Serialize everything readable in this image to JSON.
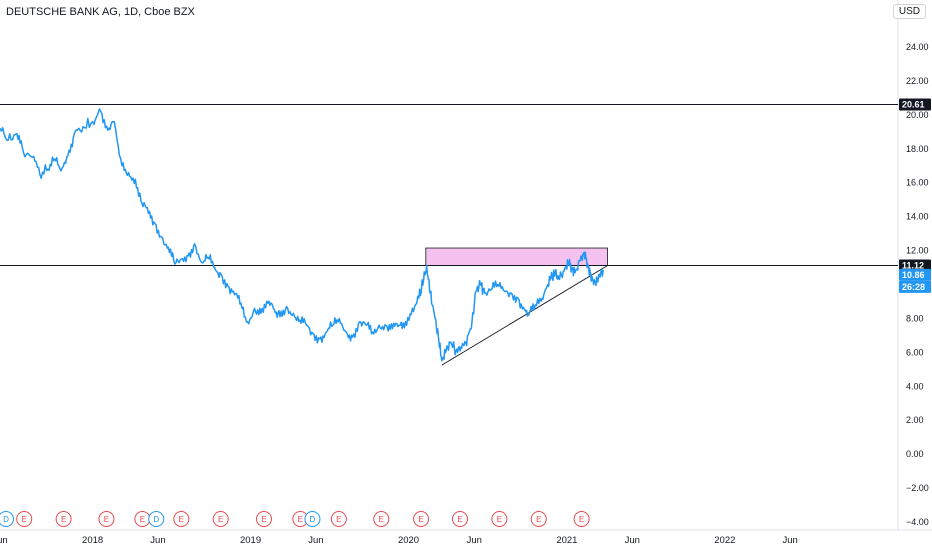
{
  "header": {
    "title": "DEUTSCHE BANK AG, 1D, Cboe BZX",
    "currency": "USD"
  },
  "colors": {
    "price_line": "#2196f3",
    "resistance_zone_fill": "#f5c2ef",
    "horizontal_line": "#131722",
    "trendline": "#131722",
    "dividend_event": "#2196f3",
    "earnings_event": "#e5484d",
    "last_price_tag": "#2196f3"
  },
  "chart_data": {
    "type": "line",
    "title": "DEUTSCHE BANK AG, 1D, Cboe BZX",
    "ylim": [
      -4.5,
      25.5
    ],
    "xlim": [
      "2017-06-01",
      "2022-09-01"
    ],
    "y_ticks": [
      "24.00",
      "22.00",
      "20.00",
      "18.00",
      "16.00",
      "14.00",
      "12.00",
      "10.00",
      "8.00",
      "6.00",
      "4.00",
      "2.00",
      "0.00",
      "−2.00",
      "−4.00"
    ],
    "x_ticks": [
      {
        "label": "Jun",
        "date": "2017-06-01"
      },
      {
        "label": "2018",
        "date": "2018-01-01"
      },
      {
        "label": "Jun",
        "date": "2018-06-01"
      },
      {
        "label": "2019",
        "date": "2019-01-01"
      },
      {
        "label": "Jun",
        "date": "2019-06-01"
      },
      {
        "label": "2020",
        "date": "2020-01-01"
      },
      {
        "label": "Jun",
        "date": "2020-06-01"
      },
      {
        "label": "2021",
        "date": "2021-01-01"
      },
      {
        "label": "Jun",
        "date": "2021-06-01"
      },
      {
        "label": "2022",
        "date": "2022-01-01"
      },
      {
        "label": "Jun",
        "date": "2022-06-01"
      }
    ],
    "series": [
      {
        "points": [
          [
            "2017-06-01",
            19.2
          ],
          [
            "2017-06-20",
            18.5
          ],
          [
            "2017-07-10",
            18.9
          ],
          [
            "2017-07-25",
            17.8
          ],
          [
            "2017-08-15",
            17.5
          ],
          [
            "2017-09-01",
            16.5
          ],
          [
            "2017-09-20",
            16.8
          ],
          [
            "2017-10-05",
            17.4
          ],
          [
            "2017-10-20",
            16.7
          ],
          [
            "2017-11-05",
            17.6
          ],
          [
            "2017-11-20",
            18.9
          ],
          [
            "2017-12-10",
            19.3
          ],
          [
            "2018-01-01",
            19.6
          ],
          [
            "2018-01-20",
            20.2
          ],
          [
            "2018-02-05",
            19.1
          ],
          [
            "2018-02-20",
            19.6
          ],
          [
            "2018-03-10",
            17.0
          ],
          [
            "2018-03-25",
            16.6
          ],
          [
            "2018-04-10",
            16.2
          ],
          [
            "2018-04-25",
            14.8
          ],
          [
            "2018-05-10",
            14.2
          ],
          [
            "2018-05-25",
            13.6
          ],
          [
            "2018-06-10",
            12.8
          ],
          [
            "2018-06-25",
            12.2
          ],
          [
            "2018-07-10",
            11.2
          ],
          [
            "2018-07-25",
            11.5
          ],
          [
            "2018-08-10",
            11.7
          ],
          [
            "2018-08-25",
            12.4
          ],
          [
            "2018-09-10",
            11.3
          ],
          [
            "2018-09-25",
            11.6
          ],
          [
            "2018-10-10",
            11.0
          ],
          [
            "2018-10-25",
            10.6
          ],
          [
            "2018-11-10",
            9.9
          ],
          [
            "2018-11-25",
            9.4
          ],
          [
            "2018-12-10",
            8.9
          ],
          [
            "2018-12-25",
            7.8
          ],
          [
            "2019-01-10",
            8.6
          ],
          [
            "2019-01-25",
            8.3
          ],
          [
            "2019-02-10",
            8.9
          ],
          [
            "2019-02-25",
            8.5
          ],
          [
            "2019-03-10",
            8.1
          ],
          [
            "2019-03-25",
            8.7
          ],
          [
            "2019-04-10",
            8.3
          ],
          [
            "2019-04-25",
            7.9
          ],
          [
            "2019-05-10",
            7.6
          ],
          [
            "2019-05-25",
            7.1
          ],
          [
            "2019-06-10",
            6.8
          ],
          [
            "2019-06-25",
            7.2
          ],
          [
            "2019-07-10",
            7.6
          ],
          [
            "2019-07-25",
            8.0
          ],
          [
            "2019-08-10",
            7.2
          ],
          [
            "2019-08-25",
            6.9
          ],
          [
            "2019-09-10",
            7.8
          ],
          [
            "2019-09-25",
            7.6
          ],
          [
            "2019-10-10",
            7.2
          ],
          [
            "2019-10-25",
            7.6
          ],
          [
            "2019-11-10",
            7.6
          ],
          [
            "2019-11-25",
            7.4
          ],
          [
            "2019-12-10",
            7.6
          ],
          [
            "2019-12-25",
            7.8
          ],
          [
            "2020-01-10",
            8.6
          ],
          [
            "2020-01-25",
            9.2
          ],
          [
            "2020-02-05",
            10.3
          ],
          [
            "2020-02-12",
            11.1
          ],
          [
            "2020-02-20",
            9.5
          ],
          [
            "2020-03-01",
            8.2
          ],
          [
            "2020-03-10",
            6.9
          ],
          [
            "2020-03-18",
            5.5
          ],
          [
            "2020-03-28",
            6.1
          ],
          [
            "2020-04-08",
            6.6
          ],
          [
            "2020-04-20",
            6.1
          ],
          [
            "2020-05-01",
            6.3
          ],
          [
            "2020-05-12",
            6.6
          ],
          [
            "2020-05-25",
            7.4
          ],
          [
            "2020-06-05",
            9.6
          ],
          [
            "2020-06-15",
            10.0
          ],
          [
            "2020-06-25",
            9.5
          ],
          [
            "2020-07-10",
            9.7
          ],
          [
            "2020-07-25",
            10.0
          ],
          [
            "2020-08-10",
            9.6
          ],
          [
            "2020-08-25",
            9.5
          ],
          [
            "2020-09-10",
            9.2
          ],
          [
            "2020-09-25",
            8.5
          ],
          [
            "2020-10-05",
            8.2
          ],
          [
            "2020-10-20",
            8.8
          ],
          [
            "2020-11-05",
            9.2
          ],
          [
            "2020-11-15",
            9.8
          ],
          [
            "2020-11-25",
            10.4
          ],
          [
            "2020-12-05",
            10.6
          ],
          [
            "2020-12-15",
            10.3
          ],
          [
            "2020-12-28",
            11.0
          ],
          [
            "2021-01-05",
            11.3
          ],
          [
            "2021-01-12",
            11.0
          ],
          [
            "2021-01-20",
            10.7
          ],
          [
            "2021-02-01",
            11.4
          ],
          [
            "2021-02-10",
            11.9
          ],
          [
            "2021-02-18",
            11.2
          ],
          [
            "2021-02-25",
            10.6
          ],
          [
            "2021-03-04",
            10.0
          ],
          [
            "2021-03-12",
            10.3
          ],
          [
            "2021-03-20",
            10.6
          ],
          [
            "2021-03-26",
            10.86
          ]
        ]
      }
    ],
    "horizontal_lines": [
      20.61,
      11.12
    ],
    "resistance_zone": {
      "x_start": "2020-02-10",
      "x_end": "2021-04-05",
      "y_low": 11.12,
      "y_high": 12.15
    },
    "trendline": {
      "start": [
        "2020-03-18",
        5.25
      ],
      "end": [
        "2021-04-05",
        11.12
      ]
    },
    "price_tags": [
      {
        "label": "20.61",
        "value": 20.61,
        "style": "dark"
      },
      {
        "label": "11.12",
        "value": 11.12,
        "style": "dark"
      },
      {
        "label": "10.86",
        "value": 10.86,
        "style": "blue"
      },
      {
        "label": "26:28",
        "value": 10.86,
        "style": "blue-lower"
      }
    ],
    "events": [
      {
        "type": "D",
        "date": "2017-06-01"
      },
      {
        "type": "E",
        "date": "2017-07-27"
      },
      {
        "type": "E",
        "date": "2017-10-26"
      },
      {
        "type": "E",
        "date": "2018-02-02"
      },
      {
        "type": "E",
        "date": "2018-04-26"
      },
      {
        "type": "D",
        "date": "2018-05-28"
      },
      {
        "type": "E",
        "date": "2018-07-25"
      },
      {
        "type": "E",
        "date": "2018-10-24"
      },
      {
        "type": "E",
        "date": "2019-02-01"
      },
      {
        "type": "E",
        "date": "2019-04-26"
      },
      {
        "type": "D",
        "date": "2019-05-24"
      },
      {
        "type": "E",
        "date": "2019-07-24"
      },
      {
        "type": "E",
        "date": "2019-10-30"
      },
      {
        "type": "E",
        "date": "2020-01-30"
      },
      {
        "type": "E",
        "date": "2020-04-29"
      },
      {
        "type": "E",
        "date": "2020-07-29"
      },
      {
        "type": "E",
        "date": "2020-10-28"
      },
      {
        "type": "E",
        "date": "2021-02-04"
      }
    ]
  }
}
